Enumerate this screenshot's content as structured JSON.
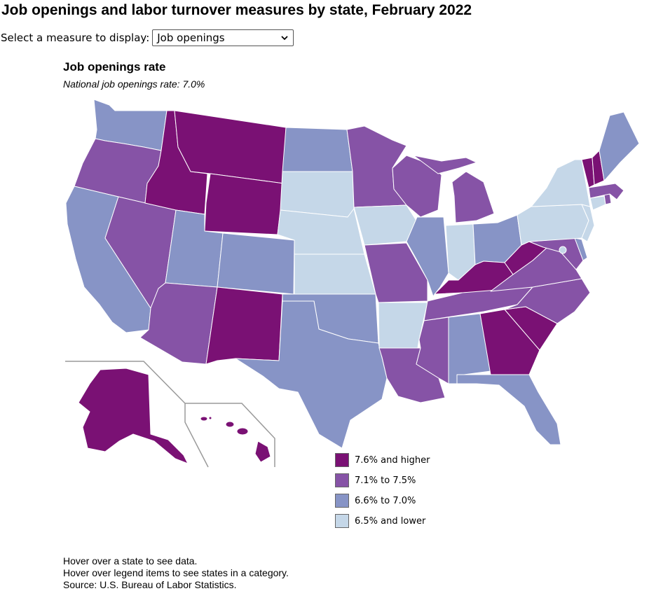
{
  "page_title": "Job openings and labor turnover measures by state, February 2022",
  "measure": {
    "label": "Select a measure to display:",
    "selected": "Job openings"
  },
  "map": {
    "title": "Job openings rate",
    "subtitle": "National job openings rate: 7.0%",
    "categories": [
      {
        "id": "c1",
        "label": "7.6% and higher",
        "color": "#7a1174"
      },
      {
        "id": "c2",
        "label": "7.1% to 7.5%",
        "color": "#8653a6"
      },
      {
        "id": "c3",
        "label": "6.6% to 7.0%",
        "color": "#8794c6"
      },
      {
        "id": "c4",
        "label": "6.5% and lower",
        "color": "#c5d7e8"
      }
    ],
    "state_categories": {
      "WA": "c3",
      "OR": "c2",
      "CA": "c3",
      "NV": "c2",
      "ID": "c1",
      "MT": "c1",
      "WY": "c1",
      "UT": "c3",
      "AZ": "c2",
      "CO": "c3",
      "NM": "c1",
      "ND": "c3",
      "SD": "c4",
      "NE": "c4",
      "KS": "c4",
      "OK": "c3",
      "TX": "c3",
      "MN": "c2",
      "IA": "c4",
      "MO": "c2",
      "AR": "c4",
      "LA": "c2",
      "WI": "c2",
      "IL": "c3",
      "MI": "c2",
      "IN": "c4",
      "OH": "c3",
      "KY": "c1",
      "TN": "c2",
      "MS": "c2",
      "AL": "c3",
      "GA": "c1",
      "FL": "c3",
      "SC": "c1",
      "NC": "c2",
      "VA": "c2",
      "WV": "c1",
      "MD": "c2",
      "DE": "c3",
      "DC": "c4",
      "PA": "c4",
      "NJ": "c4",
      "NY": "c4",
      "CT": "c4",
      "RI": "c2",
      "MA": "c2",
      "VT": "c1",
      "NH": "c1",
      "ME": "c3",
      "AK": "c1",
      "HI": "c1"
    }
  },
  "footnotes": [
    "Hover over a state to see data.",
    "Hover over legend items to see states in a category.",
    "Source: U.S. Bureau of Labor Statistics."
  ]
}
